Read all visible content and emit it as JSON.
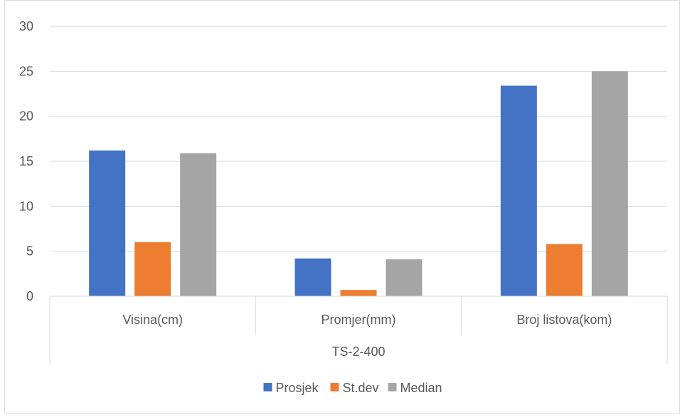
{
  "chart_data": {
    "type": "bar",
    "title": "",
    "xlabel": "",
    "ylabel": "",
    "group_label": "TS-2-400",
    "categories": [
      "Visina(cm)",
      "Promjer(mm)",
      "Broj listova(kom)"
    ],
    "series": [
      {
        "name": "Prosjek",
        "color": "#4472C4",
        "values": [
          16.2,
          4.2,
          23.4
        ]
      },
      {
        "name": "St.dev",
        "color": "#ED7D31",
        "values": [
          6.0,
          0.7,
          5.8
        ]
      },
      {
        "name": "Median",
        "color": "#A5A5A5",
        "values": [
          15.9,
          4.1,
          25.0
        ]
      }
    ],
    "ylim": [
      0,
      30
    ],
    "yticks": [
      "0",
      "5",
      "10",
      "15",
      "20",
      "25",
      "30"
    ],
    "grid": true,
    "legend_position": "bottom"
  }
}
